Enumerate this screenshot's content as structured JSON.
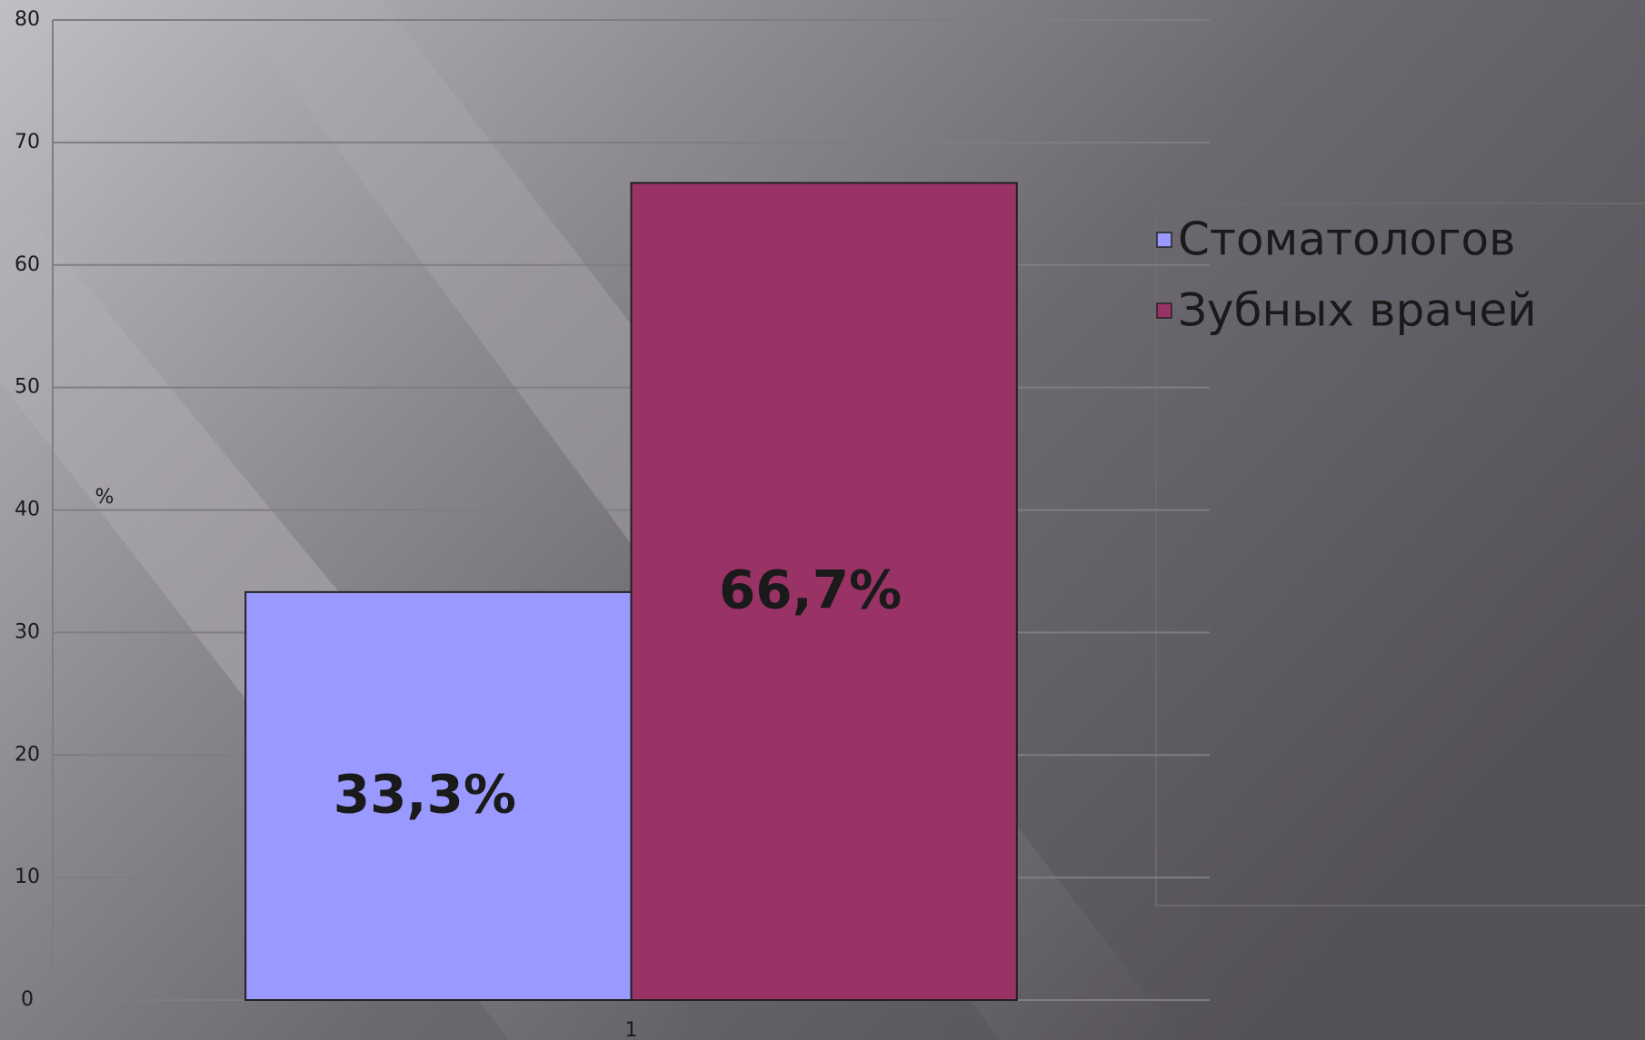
{
  "chart_data": {
    "type": "bar",
    "y_label": "%",
    "categories": [
      "1"
    ],
    "series": [
      {
        "name": "Стоматологов",
        "color": "#9999ff",
        "values": [
          33.3
        ],
        "value_labels": [
          "33,3%"
        ]
      },
      {
        "name": "Зубных врачей",
        "color": "#993366",
        "values": [
          66.7
        ],
        "value_labels": [
          "66,7%"
        ]
      }
    ],
    "ylim": [
      0,
      80
    ],
    "yticks": [
      0,
      10,
      20,
      30,
      40,
      50,
      60,
      70,
      80
    ],
    "grid": true,
    "legend": "right"
  }
}
